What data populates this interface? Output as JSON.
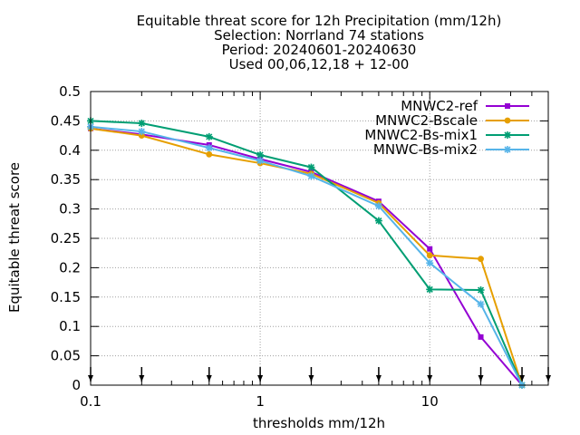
{
  "chart_data": {
    "type": "line",
    "title_lines": [
      "Equitable threat score  for 12h Precipitation (mm/12h)",
      "Selection: Norrland      74 stations",
      "Period: 20240601-20240630",
      "Used 00,06,12,18 + 12-00"
    ],
    "xlabel": "thresholds mm/12h",
    "ylabel": "Equitable threat score",
    "x_scale": "log",
    "xlim": [
      0.1,
      50
    ],
    "ylim": [
      0,
      0.5
    ],
    "x_ticks": [
      0.1,
      1,
      10
    ],
    "x_tick_labels": [
      "0.1",
      "1",
      "10"
    ],
    "y_ticks": [
      0,
      0.05,
      0.1,
      0.15,
      0.2,
      0.25,
      0.3,
      0.35,
      0.4,
      0.45,
      0.5
    ],
    "y_tick_labels": [
      "0",
      "0.05",
      "0.1",
      "0.15",
      "0.2",
      "0.25",
      "0.3",
      "0.35",
      "0.4",
      "0.45",
      "0.5"
    ],
    "grid": true,
    "legend_position": "top-right",
    "threshold_markers": [
      0.1,
      0.2,
      0.5,
      1,
      2,
      5,
      10,
      20,
      35,
      50
    ],
    "x": [
      0.1,
      0.2,
      0.5,
      1,
      2,
      5,
      10,
      20,
      35
    ],
    "series": [
      {
        "name": "MNWC2-ref",
        "color": "#9400d3",
        "marker": "square",
        "values": [
          0.437,
          0.427,
          0.409,
          0.385,
          0.363,
          0.313,
          0.232,
          0.082,
          0.0
        ]
      },
      {
        "name": "MNWC2-Bscale",
        "color": "#e69f00",
        "marker": "circle",
        "values": [
          0.437,
          0.425,
          0.393,
          0.378,
          0.36,
          0.31,
          0.221,
          0.215,
          0.0
        ]
      },
      {
        "name": "MNWC2-Bs-mix1",
        "color": "#009e73",
        "marker": "star",
        "values": [
          0.45,
          0.446,
          0.423,
          0.392,
          0.371,
          0.28,
          0.163,
          0.162,
          0.0
        ]
      },
      {
        "name": "MNWC-Bs-mix2",
        "color": "#56b4e9",
        "marker": "star",
        "values": [
          0.44,
          0.432,
          0.404,
          0.382,
          0.356,
          0.305,
          0.208,
          0.138,
          0.0
        ]
      }
    ]
  }
}
